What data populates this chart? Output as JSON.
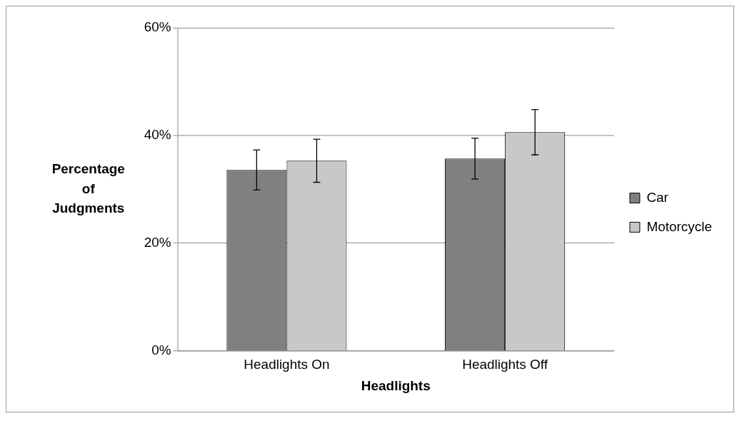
{
  "chart_data": {
    "type": "bar",
    "xlabel": "Headlights",
    "ylabel": "Percentage of Judgments",
    "categories": [
      "Headlights On",
      "Headlights Off"
    ],
    "series": [
      {
        "name": "Car",
        "color": "#808080",
        "values": [
          33.6,
          35.7
        ],
        "errors": [
          3.7,
          3.8
        ]
      },
      {
        "name": "Motorcycle",
        "color": "#c8c8c8",
        "values": [
          35.3,
          40.6
        ],
        "errors": [
          4.0,
          4.2
        ]
      }
    ],
    "ylim": [
      0,
      60
    ],
    "yticks": [
      {
        "value": 0,
        "label": "0%"
      },
      {
        "value": 20,
        "label": "20%"
      },
      {
        "value": 40,
        "label": "40%"
      },
      {
        "value": 60,
        "label": "60%"
      }
    ],
    "grid": "y",
    "legend": "right"
  }
}
